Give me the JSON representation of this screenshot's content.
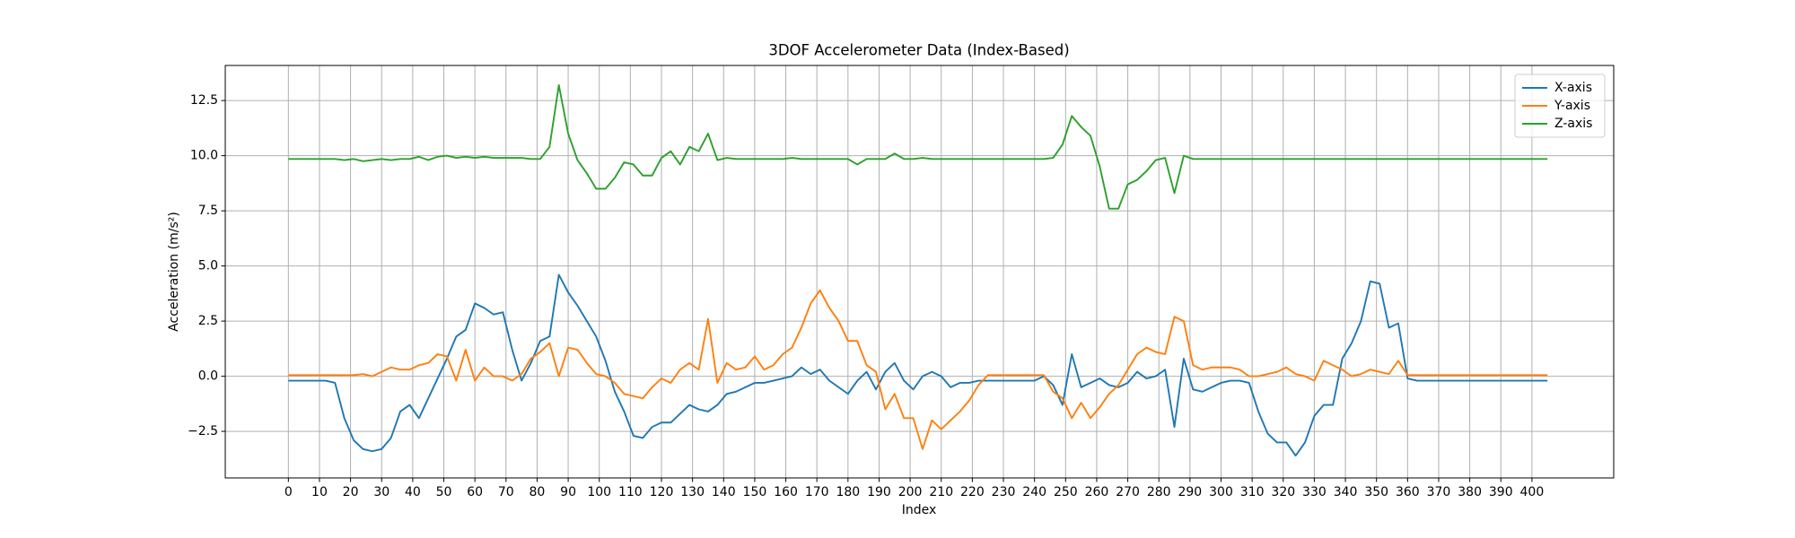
{
  "chart_data": {
    "type": "line",
    "title": "3DOF Accelerometer Data (Index-Based)",
    "x_label": "Index",
    "y_label": "Acceleration (m/s²)",
    "x": [
      0,
      3,
      6,
      9,
      12,
      15,
      18,
      21,
      24,
      27,
      30,
      33,
      36,
      39,
      42,
      45,
      48,
      51,
      54,
      57,
      60,
      63,
      66,
      69,
      72,
      75,
      78,
      81,
      84,
      87,
      90,
      93,
      96,
      99,
      102,
      105,
      108,
      111,
      114,
      117,
      120,
      123,
      126,
      129,
      132,
      135,
      138,
      141,
      144,
      147,
      150,
      153,
      156,
      159,
      162,
      165,
      168,
      171,
      174,
      177,
      180,
      183,
      186,
      189,
      192,
      195,
      198,
      201,
      204,
      207,
      210,
      213,
      216,
      219,
      222,
      225,
      228,
      231,
      234,
      237,
      240,
      243,
      246,
      249,
      252,
      255,
      258,
      261,
      264,
      267,
      270,
      273,
      276,
      279,
      282,
      285,
      288,
      291,
      294,
      297,
      300,
      303,
      306,
      309,
      312,
      315,
      318,
      321,
      324,
      327,
      330,
      333,
      336,
      339,
      342,
      345,
      348,
      351,
      354,
      357,
      360,
      363,
      366,
      369,
      372,
      375,
      378,
      381,
      384,
      387,
      390,
      393,
      396,
      399,
      402,
      405
    ],
    "series": [
      {
        "name": "X-axis",
        "color": "#1f77b4",
        "values": [
          -0.2,
          -0.2,
          -0.2,
          -0.2,
          -0.2,
          -0.3,
          -1.9,
          -2.9,
          -3.3,
          -3.4,
          -3.3,
          -2.8,
          -1.6,
          -1.3,
          -1.9,
          -1.0,
          -0.1,
          0.8,
          1.8,
          2.1,
          3.3,
          3.1,
          2.8,
          2.9,
          1.2,
          -0.2,
          0.6,
          1.6,
          1.8,
          4.6,
          3.8,
          3.2,
          2.5,
          1.8,
          0.7,
          -0.7,
          -1.6,
          -2.7,
          -2.8,
          -2.3,
          -2.1,
          -2.1,
          -1.7,
          -1.3,
          -1.5,
          -1.6,
          -1.3,
          -0.8,
          -0.7,
          -0.5,
          -0.3,
          -0.3,
          -0.2,
          -0.1,
          0.0,
          0.4,
          0.1,
          0.3,
          -0.2,
          -0.5,
          -0.8,
          -0.2,
          0.2,
          -0.6,
          0.2,
          0.6,
          -0.2,
          -0.6,
          0.0,
          0.2,
          0.0,
          -0.5,
          -0.3,
          -0.3,
          -0.2,
          -0.2,
          -0.2,
          -0.2,
          -0.2,
          -0.2,
          -0.2,
          0.0,
          -0.4,
          -1.3,
          1.0,
          -0.5,
          -0.3,
          -0.1,
          -0.4,
          -0.5,
          -0.3,
          0.2,
          -0.1,
          0.0,
          0.3,
          -2.3,
          0.8,
          -0.6,
          -0.7,
          -0.5,
          -0.3,
          -0.2,
          -0.2,
          -0.3,
          -1.6,
          -2.6,
          -3.0,
          -3.0,
          -3.6,
          -3.0,
          -1.8,
          -1.3,
          -1.3,
          0.8,
          1.5,
          2.5,
          4.3,
          4.2,
          2.2,
          2.4,
          -0.1,
          -0.2,
          -0.2,
          -0.2,
          -0.2,
          -0.2,
          -0.2,
          -0.2,
          -0.2,
          -0.2,
          -0.2,
          -0.2,
          -0.2,
          -0.2,
          -0.2,
          -0.2
        ]
      },
      {
        "name": "Y-axis",
        "color": "#ff7f0e",
        "values": [
          0.05,
          0.05,
          0.05,
          0.05,
          0.05,
          0.05,
          0.05,
          0.05,
          0.1,
          0.0,
          0.2,
          0.4,
          0.3,
          0.3,
          0.5,
          0.6,
          1.0,
          0.9,
          -0.2,
          1.2,
          -0.2,
          0.4,
          0.0,
          0.0,
          -0.2,
          0.1,
          0.8,
          1.1,
          1.5,
          0.0,
          1.3,
          1.2,
          0.6,
          0.1,
          0.0,
          -0.3,
          -0.8,
          -0.9,
          -1.0,
          -0.5,
          -0.1,
          -0.3,
          0.3,
          0.6,
          0.3,
          2.6,
          -0.3,
          0.6,
          0.3,
          0.4,
          0.9,
          0.3,
          0.5,
          1.0,
          1.3,
          2.2,
          3.3,
          3.9,
          3.1,
          2.5,
          1.6,
          1.6,
          0.5,
          0.2,
          -1.5,
          -0.8,
          -1.9,
          -1.9,
          -3.3,
          -2.0,
          -2.4,
          -2.0,
          -1.6,
          -1.1,
          -0.4,
          0.05,
          0.05,
          0.05,
          0.05,
          0.05,
          0.05,
          0.05,
          -0.7,
          -1.0,
          -1.9,
          -1.2,
          -1.9,
          -1.4,
          -0.8,
          -0.4,
          0.3,
          1.0,
          1.3,
          1.1,
          1.0,
          2.7,
          2.5,
          0.5,
          0.3,
          0.4,
          0.4,
          0.4,
          0.3,
          0.0,
          0.0,
          0.1,
          0.2,
          0.4,
          0.1,
          0.0,
          -0.2,
          0.7,
          0.5,
          0.3,
          0.0,
          0.1,
          0.3,
          0.2,
          0.1,
          0.7,
          0.05,
          0.05,
          0.05,
          0.05,
          0.05,
          0.05,
          0.05,
          0.05,
          0.05,
          0.05,
          0.05,
          0.05,
          0.05,
          0.05,
          0.05,
          0.05
        ]
      },
      {
        "name": "Z-axis",
        "color": "#2ca02c",
        "values": [
          9.85,
          9.85,
          9.85,
          9.85,
          9.85,
          9.85,
          9.8,
          9.85,
          9.75,
          9.8,
          9.85,
          9.8,
          9.85,
          9.85,
          9.95,
          9.8,
          9.95,
          10.0,
          9.9,
          9.95,
          9.9,
          9.95,
          9.9,
          9.9,
          9.9,
          9.9,
          9.85,
          9.85,
          10.4,
          13.2,
          11.0,
          9.8,
          9.2,
          8.5,
          8.5,
          9.0,
          9.7,
          9.6,
          9.1,
          9.1,
          9.9,
          10.2,
          9.6,
          10.4,
          10.2,
          11.0,
          9.8,
          9.9,
          9.85,
          9.85,
          9.85,
          9.85,
          9.85,
          9.85,
          9.9,
          9.85,
          9.85,
          9.85,
          9.85,
          9.85,
          9.85,
          9.6,
          9.85,
          9.85,
          9.85,
          10.1,
          9.85,
          9.85,
          9.9,
          9.85,
          9.85,
          9.85,
          9.85,
          9.85,
          9.85,
          9.85,
          9.85,
          9.85,
          9.85,
          9.85,
          9.85,
          9.85,
          9.9,
          10.5,
          11.8,
          11.3,
          10.9,
          9.5,
          7.6,
          7.6,
          8.7,
          8.9,
          9.3,
          9.8,
          9.9,
          8.3,
          10.0,
          9.85,
          9.85,
          9.85,
          9.85,
          9.85,
          9.85,
          9.85,
          9.85,
          9.85,
          9.85,
          9.85,
          9.85,
          9.85,
          9.85,
          9.85,
          9.85,
          9.85,
          9.85,
          9.85,
          9.85,
          9.85,
          9.85,
          9.85,
          9.85,
          9.85,
          9.85,
          9.85,
          9.85,
          9.85,
          9.85,
          9.85,
          9.85,
          9.85,
          9.85,
          9.85,
          9.85,
          9.85,
          9.85,
          9.85
        ]
      }
    ],
    "xlim": [
      -20.3,
      426.3
    ],
    "xticks": [
      0,
      10,
      20,
      30,
      40,
      50,
      60,
      70,
      80,
      90,
      100,
      110,
      120,
      130,
      140,
      150,
      160,
      170,
      180,
      190,
      200,
      210,
      220,
      230,
      240,
      250,
      260,
      270,
      280,
      290,
      300,
      310,
      320,
      330,
      340,
      350,
      360,
      370,
      380,
      390,
      400
    ],
    "ylim": [
      -4.61,
      14.09
    ],
    "yticks": [
      {
        "value": -2.5,
        "label": "−2.5"
      },
      {
        "value": 0,
        "label": "0.0"
      },
      2.5,
      {
        "value": 5,
        "label": "5.0"
      },
      7.5,
      {
        "value": 10,
        "label": "10.0"
      },
      12.5
    ],
    "grid": true,
    "legend": "upper right"
  }
}
